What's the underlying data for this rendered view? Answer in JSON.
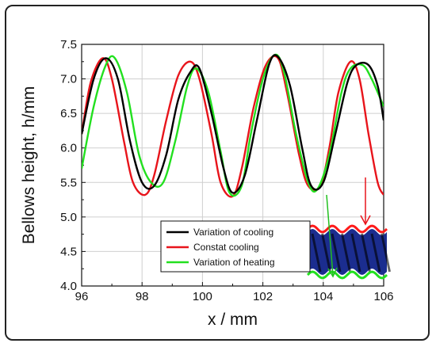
{
  "chart_data": {
    "type": "line",
    "xlabel": "x / mm",
    "ylabel": "Bellows height, h/mm",
    "xlim": [
      96,
      106
    ],
    "ylim": [
      4.0,
      7.5
    ],
    "xticks": [
      "96",
      "98",
      "100",
      "102",
      "104",
      "106"
    ],
    "yticks": [
      "4.0",
      "4.5",
      "5.0",
      "5.5",
      "6.0",
      "6.5",
      "7.0",
      "7.5"
    ],
    "grid": true,
    "legend_position": "bottom-center",
    "series": [
      {
        "name": "Variation of cooling",
        "color": "#000000",
        "x": [
          96.0,
          96.4,
          96.8,
          97.2,
          97.6,
          98.0,
          98.4,
          98.8,
          99.2,
          99.6,
          99.9,
          100.3,
          100.7,
          101.0,
          101.4,
          101.8,
          102.2,
          102.5,
          102.9,
          103.3,
          103.6,
          104.0,
          104.4,
          104.8,
          105.1,
          105.5,
          105.8,
          106.0
        ],
        "y": [
          6.2,
          7.0,
          7.3,
          7.0,
          6.1,
          5.5,
          5.45,
          5.9,
          6.7,
          7.1,
          7.15,
          6.5,
          5.7,
          5.35,
          5.6,
          6.4,
          7.2,
          7.32,
          6.9,
          6.0,
          5.45,
          5.5,
          6.2,
          6.95,
          7.2,
          7.2,
          6.9,
          6.4
        ]
      },
      {
        "name": "Constat cooling",
        "color": "#e8141b",
        "x": [
          96.0,
          96.3,
          96.7,
          97.0,
          97.4,
          97.7,
          98.1,
          98.4,
          98.8,
          99.2,
          99.6,
          99.9,
          100.3,
          100.6,
          101.0,
          101.3,
          101.7,
          102.1,
          102.5,
          102.8,
          103.2,
          103.5,
          103.9,
          104.2,
          104.5,
          104.9,
          105.2,
          105.5,
          105.8,
          106.0
        ],
        "y": [
          6.2,
          6.95,
          7.3,
          7.0,
          6.1,
          5.5,
          5.32,
          5.6,
          6.4,
          7.05,
          7.25,
          7.0,
          6.2,
          5.5,
          5.3,
          5.7,
          6.6,
          7.2,
          7.3,
          6.8,
          5.9,
          5.45,
          5.45,
          6.0,
          6.8,
          7.25,
          7.0,
          6.2,
          5.5,
          5.32
        ]
      },
      {
        "name": "Variation of heating",
        "color": "#22e01f",
        "x": [
          96.0,
          96.4,
          96.8,
          97.1,
          97.5,
          97.9,
          98.3,
          98.7,
          99.1,
          99.5,
          99.8,
          100.2,
          100.6,
          100.9,
          101.3,
          101.6,
          102.0,
          102.4,
          102.7,
          103.1,
          103.5,
          103.8,
          104.2,
          104.6,
          104.9,
          105.3,
          105.6,
          106.0
        ],
        "y": [
          5.7,
          6.6,
          7.2,
          7.3,
          6.8,
          5.9,
          5.5,
          5.5,
          6.1,
          6.9,
          7.15,
          6.8,
          5.95,
          5.35,
          5.45,
          6.2,
          7.0,
          7.35,
          7.1,
          6.2,
          5.5,
          5.4,
          5.9,
          6.8,
          7.15,
          7.2,
          7.0,
          6.6
        ]
      }
    ]
  },
  "inset": {
    "description": "bellows-illustration",
    "body_color": "#1b2d8f",
    "top_wave_color": "#ff1a1a",
    "bottom_wave_color": "#22e01f",
    "stripe_color": "#000000"
  }
}
